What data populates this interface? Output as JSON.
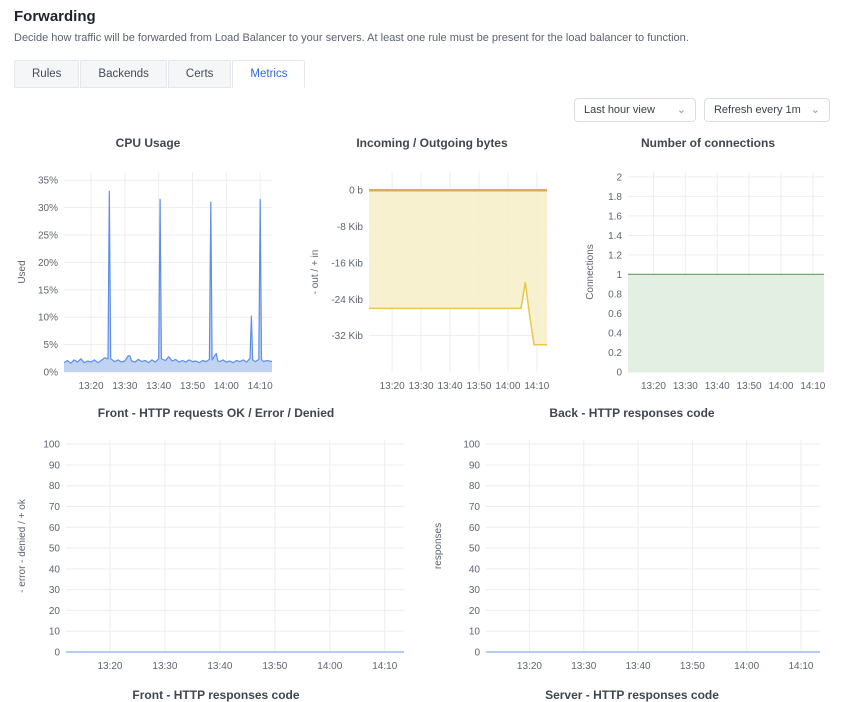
{
  "header": {
    "title": "Forwarding",
    "description": "Decide how traffic will be forwarded from Load Balancer to your servers. At least one rule must be present for the load balancer to function."
  },
  "tabs": [
    {
      "label": "Rules",
      "active": false
    },
    {
      "label": "Backends",
      "active": false
    },
    {
      "label": "Certs",
      "active": false
    },
    {
      "label": "Metrics",
      "active": true
    }
  ],
  "toolbar": {
    "time_range": {
      "value": "Last hour view"
    },
    "refresh": {
      "value": "Refresh every 1m"
    }
  },
  "icons": {
    "chevron_down": "⌄"
  },
  "colors": {
    "accent": "#2e6be6",
    "grid": "#ebedf0",
    "tick_text": "#5d6570",
    "chart_title": "#3f4652"
  },
  "pending_chart_titles": [
    "Front - HTTP responses code",
    "Server - HTTP responses code"
  ],
  "chart_data": [
    {
      "id": "cpu",
      "row": "top",
      "type": "area",
      "title": "CPU Usage",
      "ylabel": "Used",
      "ylim": [
        0,
        36.5
      ],
      "xlim": [
        792,
        853.5
      ],
      "grid": true,
      "yticks": [
        {
          "v": 0,
          "label": "0%"
        },
        {
          "v": 5,
          "label": "5%"
        },
        {
          "v": 10,
          "label": "10%"
        },
        {
          "v": 15,
          "label": "15%"
        },
        {
          "v": 20,
          "label": "20%"
        },
        {
          "v": 25,
          "label": "25%"
        },
        {
          "v": 30,
          "label": "30%"
        },
        {
          "v": 35,
          "label": "35%"
        }
      ],
      "xticks": [
        {
          "v": 800,
          "label": "13:20"
        },
        {
          "v": 810,
          "label": "13:30"
        },
        {
          "v": 820,
          "label": "13:40"
        },
        {
          "v": 830,
          "label": "13:50"
        },
        {
          "v": 840,
          "label": "14:00"
        },
        {
          "v": 850,
          "label": "14:10"
        }
      ],
      "series": [
        {
          "name": "used",
          "color": "#5e8ee9",
          "fill": "#b9cef2",
          "fill_opacity": 0.9,
          "width": 1.2,
          "base": 0,
          "points": [
            [
              792,
              1.7
            ],
            [
              793,
              2.1
            ],
            [
              794,
              1.6
            ],
            [
              795,
              2.2
            ],
            [
              796,
              1.8
            ],
            [
              797,
              2.4
            ],
            [
              798,
              1.7
            ],
            [
              799,
              2.0
            ],
            [
              800,
              1.8
            ],
            [
              801,
              2.2
            ],
            [
              802,
              1.7
            ],
            [
              803,
              2.1
            ],
            [
              804,
              2.6
            ],
            [
              805,
              2.4
            ],
            [
              805.4,
              33
            ],
            [
              805.8,
              2.4
            ],
            [
              807,
              1.9
            ],
            [
              808,
              2.2
            ],
            [
              809,
              1.8
            ],
            [
              810,
              2.0
            ],
            [
              811,
              3.0
            ],
            [
              811.5,
              2.9
            ],
            [
              812,
              2.0
            ],
            [
              813,
              1.8
            ],
            [
              814,
              2.3
            ],
            [
              815,
              1.9
            ],
            [
              816,
              2.1
            ],
            [
              817,
              1.7
            ],
            [
              818,
              2.2
            ],
            [
              819,
              1.8
            ],
            [
              820,
              2.4
            ],
            [
              820.4,
              31.5
            ],
            [
              820.8,
              2.4
            ],
            [
              822,
              2.1
            ],
            [
              823,
              2.8
            ],
            [
              824,
              2.0
            ],
            [
              825,
              2.3
            ],
            [
              826,
              1.8
            ],
            [
              827,
              2.1
            ],
            [
              828,
              1.8
            ],
            [
              829,
              2.2
            ],
            [
              830,
              1.9
            ],
            [
              831,
              2.0
            ],
            [
              832,
              1.7
            ],
            [
              833,
              2.1
            ],
            [
              834,
              1.9
            ],
            [
              835,
              2.3
            ],
            [
              835.4,
              31
            ],
            [
              835.8,
              2.2
            ],
            [
              837,
              3.4
            ],
            [
              837.5,
              2.0
            ],
            [
              838,
              1.9
            ],
            [
              839,
              2.2
            ],
            [
              840,
              1.8
            ],
            [
              841,
              2.0
            ],
            [
              842,
              1.7
            ],
            [
              843,
              2.1
            ],
            [
              844,
              1.9
            ],
            [
              845,
              2.2
            ],
            [
              846,
              1.8
            ],
            [
              847,
              2.5
            ],
            [
              847.4,
              10.2
            ],
            [
              847.8,
              2.2
            ],
            [
              848.6,
              1.9
            ],
            [
              849.6,
              2.3
            ],
            [
              850,
              31.5
            ],
            [
              850.4,
              2.3
            ],
            [
              851,
              1.9
            ],
            [
              852,
              2.1
            ],
            [
              853.5,
              1.9
            ]
          ]
        }
      ]
    },
    {
      "id": "bytes",
      "row": "top",
      "type": "area",
      "title": "Incoming / Outgoing bytes",
      "ylabel": "- out / + in",
      "ylim": [
        -40,
        4
      ],
      "xlim": [
        792,
        853.5
      ],
      "grid": true,
      "yticks": [
        {
          "v": 0,
          "label": "0 b"
        },
        {
          "v": -8,
          "label": "-8 Kib"
        },
        {
          "v": -16,
          "label": "-16 Kib"
        },
        {
          "v": -24,
          "label": "-24 Kib"
        },
        {
          "v": -32,
          "label": "-32 Kib"
        }
      ],
      "xticks": [
        {
          "v": 800,
          "label": "13:20"
        },
        {
          "v": 810,
          "label": "13:30"
        },
        {
          "v": 820,
          "label": "13:40"
        },
        {
          "v": 830,
          "label": "13:50"
        },
        {
          "v": 840,
          "label": "14:00"
        },
        {
          "v": 850,
          "label": "14:10"
        }
      ],
      "series": [
        {
          "name": "outgoing",
          "color": "#e8c74b",
          "fill": "#f6eec8",
          "fill_opacity": 0.85,
          "width": 1.5,
          "base": 0,
          "points": [
            [
              792,
              -26
            ],
            [
              844.5,
              -26
            ],
            [
              846,
              -20.3
            ],
            [
              847.5,
              -27.5
            ],
            [
              849,
              -34
            ],
            [
              853.5,
              -34
            ]
          ]
        },
        {
          "name": "incoming",
          "color": "#ddab5f",
          "width": 2.5,
          "points": [
            [
              792,
              0
            ],
            [
              853.5,
              0
            ]
          ]
        }
      ]
    },
    {
      "id": "connections",
      "row": "top",
      "type": "area",
      "title": "Number of connections",
      "ylabel": "Connections",
      "ylim": [
        0,
        2.05
      ],
      "xlim": [
        792,
        853.5
      ],
      "grid": true,
      "yticks": [
        {
          "v": 0,
          "label": "0"
        },
        {
          "v": 0.2,
          "label": "0.2"
        },
        {
          "v": 0.4,
          "label": "0.4"
        },
        {
          "v": 0.6,
          "label": "0.6"
        },
        {
          "v": 0.8,
          "label": "0.8"
        },
        {
          "v": 1,
          "label": "1"
        },
        {
          "v": 1.2,
          "label": "1.2"
        },
        {
          "v": 1.4,
          "label": "1.4"
        },
        {
          "v": 1.6,
          "label": "1.6"
        },
        {
          "v": 1.8,
          "label": "1.8"
        },
        {
          "v": 2,
          "label": "2"
        }
      ],
      "xticks": [
        {
          "v": 800,
          "label": "13:20"
        },
        {
          "v": 810,
          "label": "13:30"
        },
        {
          "v": 820,
          "label": "13:40"
        },
        {
          "v": 830,
          "label": "13:50"
        },
        {
          "v": 840,
          "label": "14:00"
        },
        {
          "v": 850,
          "label": "14:10"
        }
      ],
      "series": [
        {
          "name": "connections",
          "color": "#6ea873",
          "fill": "#e2eee1",
          "fill_opacity": 0.95,
          "width": 1.3,
          "base": 0,
          "points": [
            [
              792,
              1
            ],
            [
              853.5,
              1
            ]
          ]
        }
      ]
    },
    {
      "id": "front",
      "row": "bottom",
      "type": "line",
      "title": "Front - HTTP requests OK / Error / Denied",
      "ylabel": "- error - denied / + ok",
      "ylim": [
        0,
        102
      ],
      "xlim": [
        792,
        853.5
      ],
      "grid": true,
      "yticks": [
        {
          "v": 0,
          "label": "0"
        },
        {
          "v": 10,
          "label": "10"
        },
        {
          "v": 20,
          "label": "20"
        },
        {
          "v": 30,
          "label": "30"
        },
        {
          "v": 40,
          "label": "40"
        },
        {
          "v": 50,
          "label": "50"
        },
        {
          "v": 60,
          "label": "60"
        },
        {
          "v": 70,
          "label": "70"
        },
        {
          "v": 80,
          "label": "80"
        },
        {
          "v": 90,
          "label": "90"
        },
        {
          "v": 100,
          "label": "100"
        }
      ],
      "xticks": [
        {
          "v": 800,
          "label": "13:20"
        },
        {
          "v": 810,
          "label": "13:30"
        },
        {
          "v": 820,
          "label": "13:40"
        },
        {
          "v": 830,
          "label": "13:50"
        },
        {
          "v": 840,
          "label": "14:00"
        },
        {
          "v": 850,
          "label": "14:10"
        }
      ],
      "series": [
        {
          "name": "requests",
          "color": "#88acf1",
          "width": 1.3,
          "points": [
            [
              792,
              0
            ],
            [
              853.5,
              0
            ]
          ]
        }
      ]
    },
    {
      "id": "back",
      "row": "bottom",
      "type": "line",
      "title": "Back - HTTP responses code",
      "ylabel": "responses",
      "ylim": [
        0,
        102
      ],
      "xlim": [
        792,
        853.5
      ],
      "grid": true,
      "yticks": [
        {
          "v": 0,
          "label": "0"
        },
        {
          "v": 10,
          "label": "10"
        },
        {
          "v": 20,
          "label": "20"
        },
        {
          "v": 30,
          "label": "30"
        },
        {
          "v": 40,
          "label": "40"
        },
        {
          "v": 50,
          "label": "50"
        },
        {
          "v": 60,
          "label": "60"
        },
        {
          "v": 70,
          "label": "70"
        },
        {
          "v": 80,
          "label": "80"
        },
        {
          "v": 90,
          "label": "90"
        },
        {
          "v": 100,
          "label": "100"
        }
      ],
      "xticks": [
        {
          "v": 800,
          "label": "13:20"
        },
        {
          "v": 810,
          "label": "13:30"
        },
        {
          "v": 820,
          "label": "13:40"
        },
        {
          "v": 830,
          "label": "13:50"
        },
        {
          "v": 840,
          "label": "14:00"
        },
        {
          "v": 850,
          "label": "14:10"
        }
      ],
      "series": [
        {
          "name": "responses",
          "color": "#88acf1",
          "width": 1.3,
          "points": [
            [
              792,
              0
            ],
            [
              853.5,
              0
            ]
          ]
        }
      ]
    }
  ]
}
